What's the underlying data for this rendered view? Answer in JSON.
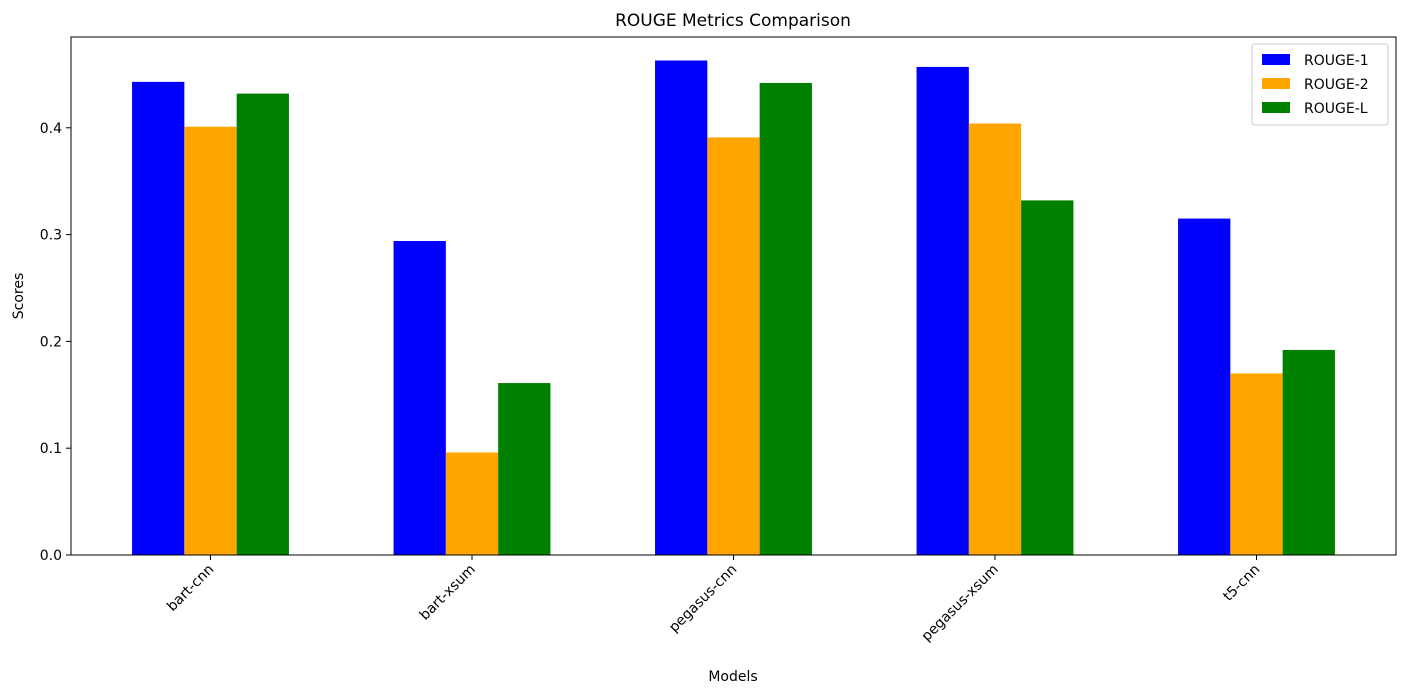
{
  "chart_data": {
    "type": "bar",
    "title": "ROUGE Metrics Comparison",
    "xlabel": "Models",
    "ylabel": "Scores",
    "categories": [
      "bart-cnn",
      "bart-xsum",
      "pegasus-cnn",
      "pegasus-xsum",
      "t5-cnn"
    ],
    "series": [
      {
        "name": "ROUGE-1",
        "color": "#0000ff",
        "values": [
          0.443,
          0.294,
          0.463,
          0.457,
          0.315
        ]
      },
      {
        "name": "ROUGE-2",
        "color": "#ffa500",
        "values": [
          0.401,
          0.096,
          0.391,
          0.404,
          0.17
        ]
      },
      {
        "name": "ROUGE-L",
        "color": "#008000",
        "values": [
          0.432,
          0.161,
          0.442,
          0.332,
          0.192
        ]
      }
    ],
    "ylim": [
      0,
      0.485
    ],
    "yticks": [
      "0.0",
      "0.1",
      "0.2",
      "0.3",
      "0.4"
    ],
    "grid": false,
    "legend_position": "top-right"
  }
}
